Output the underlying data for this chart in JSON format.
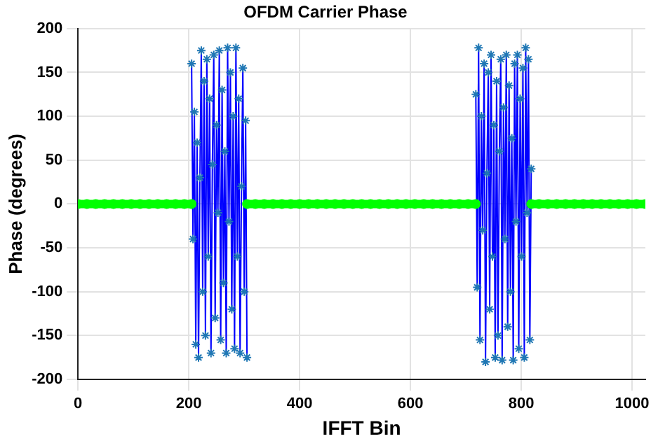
{
  "chart_data": {
    "type": "line",
    "title": "OFDM Carrier Phase",
    "xlabel": "IFFT Bin",
    "ylabel": "Phase (degrees)",
    "xlim": [
      0,
      1024
    ],
    "xticks": [
      0,
      200,
      400,
      600,
      800,
      1000
    ],
    "ylim": [
      -200,
      200
    ],
    "yticks": [
      -200,
      -150,
      -100,
      -50,
      0,
      50,
      100,
      150,
      200
    ],
    "grid": true,
    "legend": false,
    "series": [
      {
        "color": "#00ff00",
        "marker": "circle",
        "x": [
          0,
          16,
          32,
          48,
          64,
          80,
          96,
          112,
          128,
          144,
          160,
          176,
          192,
          205,
          255,
          305,
          320,
          336,
          352,
          368,
          384,
          400,
          416,
          432,
          448,
          464,
          480,
          496,
          512,
          528,
          544,
          560,
          576,
          592,
          608,
          624,
          640,
          656,
          672,
          688,
          704,
          718,
          768,
          818,
          832,
          848,
          864,
          880,
          896,
          912,
          928,
          944,
          960,
          976,
          992,
          1008,
          1024
        ],
        "values": [
          0,
          0,
          0,
          0,
          0,
          0,
          0,
          0,
          0,
          0,
          0,
          0,
          0,
          0,
          null,
          0,
          0,
          0,
          0,
          0,
          0,
          0,
          0,
          0,
          0,
          0,
          0,
          0,
          0,
          0,
          0,
          0,
          0,
          0,
          0,
          0,
          0,
          0,
          0,
          0,
          0,
          0,
          null,
          0,
          0,
          0,
          0,
          0,
          0,
          0,
          0,
          0,
          0,
          0,
          0,
          0,
          0
        ]
      },
      {
        "color": "#0000ff",
        "marker": "cross",
        "x": [
          205,
          207.5,
          210,
          212.5,
          215,
          217.5,
          220,
          222.5,
          225,
          227.5,
          230,
          232.5,
          235,
          237.5,
          240,
          242.5,
          245,
          247.5,
          250,
          252.5,
          255,
          257.5,
          260,
          262.5,
          265,
          267.5,
          270,
          272.5,
          275,
          277.5,
          280,
          282.5,
          285,
          287.5,
          290,
          292.5,
          295,
          297.5,
          300,
          302.5,
          305,
          510,
          718,
          720.5,
          723,
          725.5,
          728,
          730.5,
          733,
          735.5,
          738,
          740.5,
          743,
          745.5,
          748,
          750.5,
          753,
          755.5,
          758,
          760.5,
          763,
          765.5,
          768,
          770.5,
          773,
          775.5,
          778,
          780.5,
          783,
          785.5,
          788,
          790.5,
          793,
          795.5,
          798,
          800.5,
          803,
          805.5,
          808,
          810.5,
          813,
          815.5,
          818
        ],
        "values": [
          160,
          -40,
          105,
          -160,
          70,
          -175,
          30,
          175,
          -100,
          140,
          -150,
          165,
          -60,
          120,
          -170,
          45,
          170,
          -130,
          90,
          -10,
          175,
          -155,
          130,
          -90,
          60,
          -170,
          178,
          -20,
          150,
          -120,
          100,
          -165,
          178,
          -60,
          120,
          -170,
          20,
          155,
          -100,
          95,
          -175,
          null,
          125,
          -95,
          178,
          -155,
          100,
          -30,
          160,
          -180,
          35,
          150,
          -120,
          170,
          -60,
          90,
          -175,
          140,
          -150,
          60,
          165,
          -178,
          110,
          -40,
          170,
          -140,
          135,
          -100,
          75,
          -178,
          160,
          -20,
          170,
          -165,
          120,
          -60,
          155,
          -175,
          178,
          -10,
          165,
          -155,
          40
        ]
      }
    ]
  }
}
